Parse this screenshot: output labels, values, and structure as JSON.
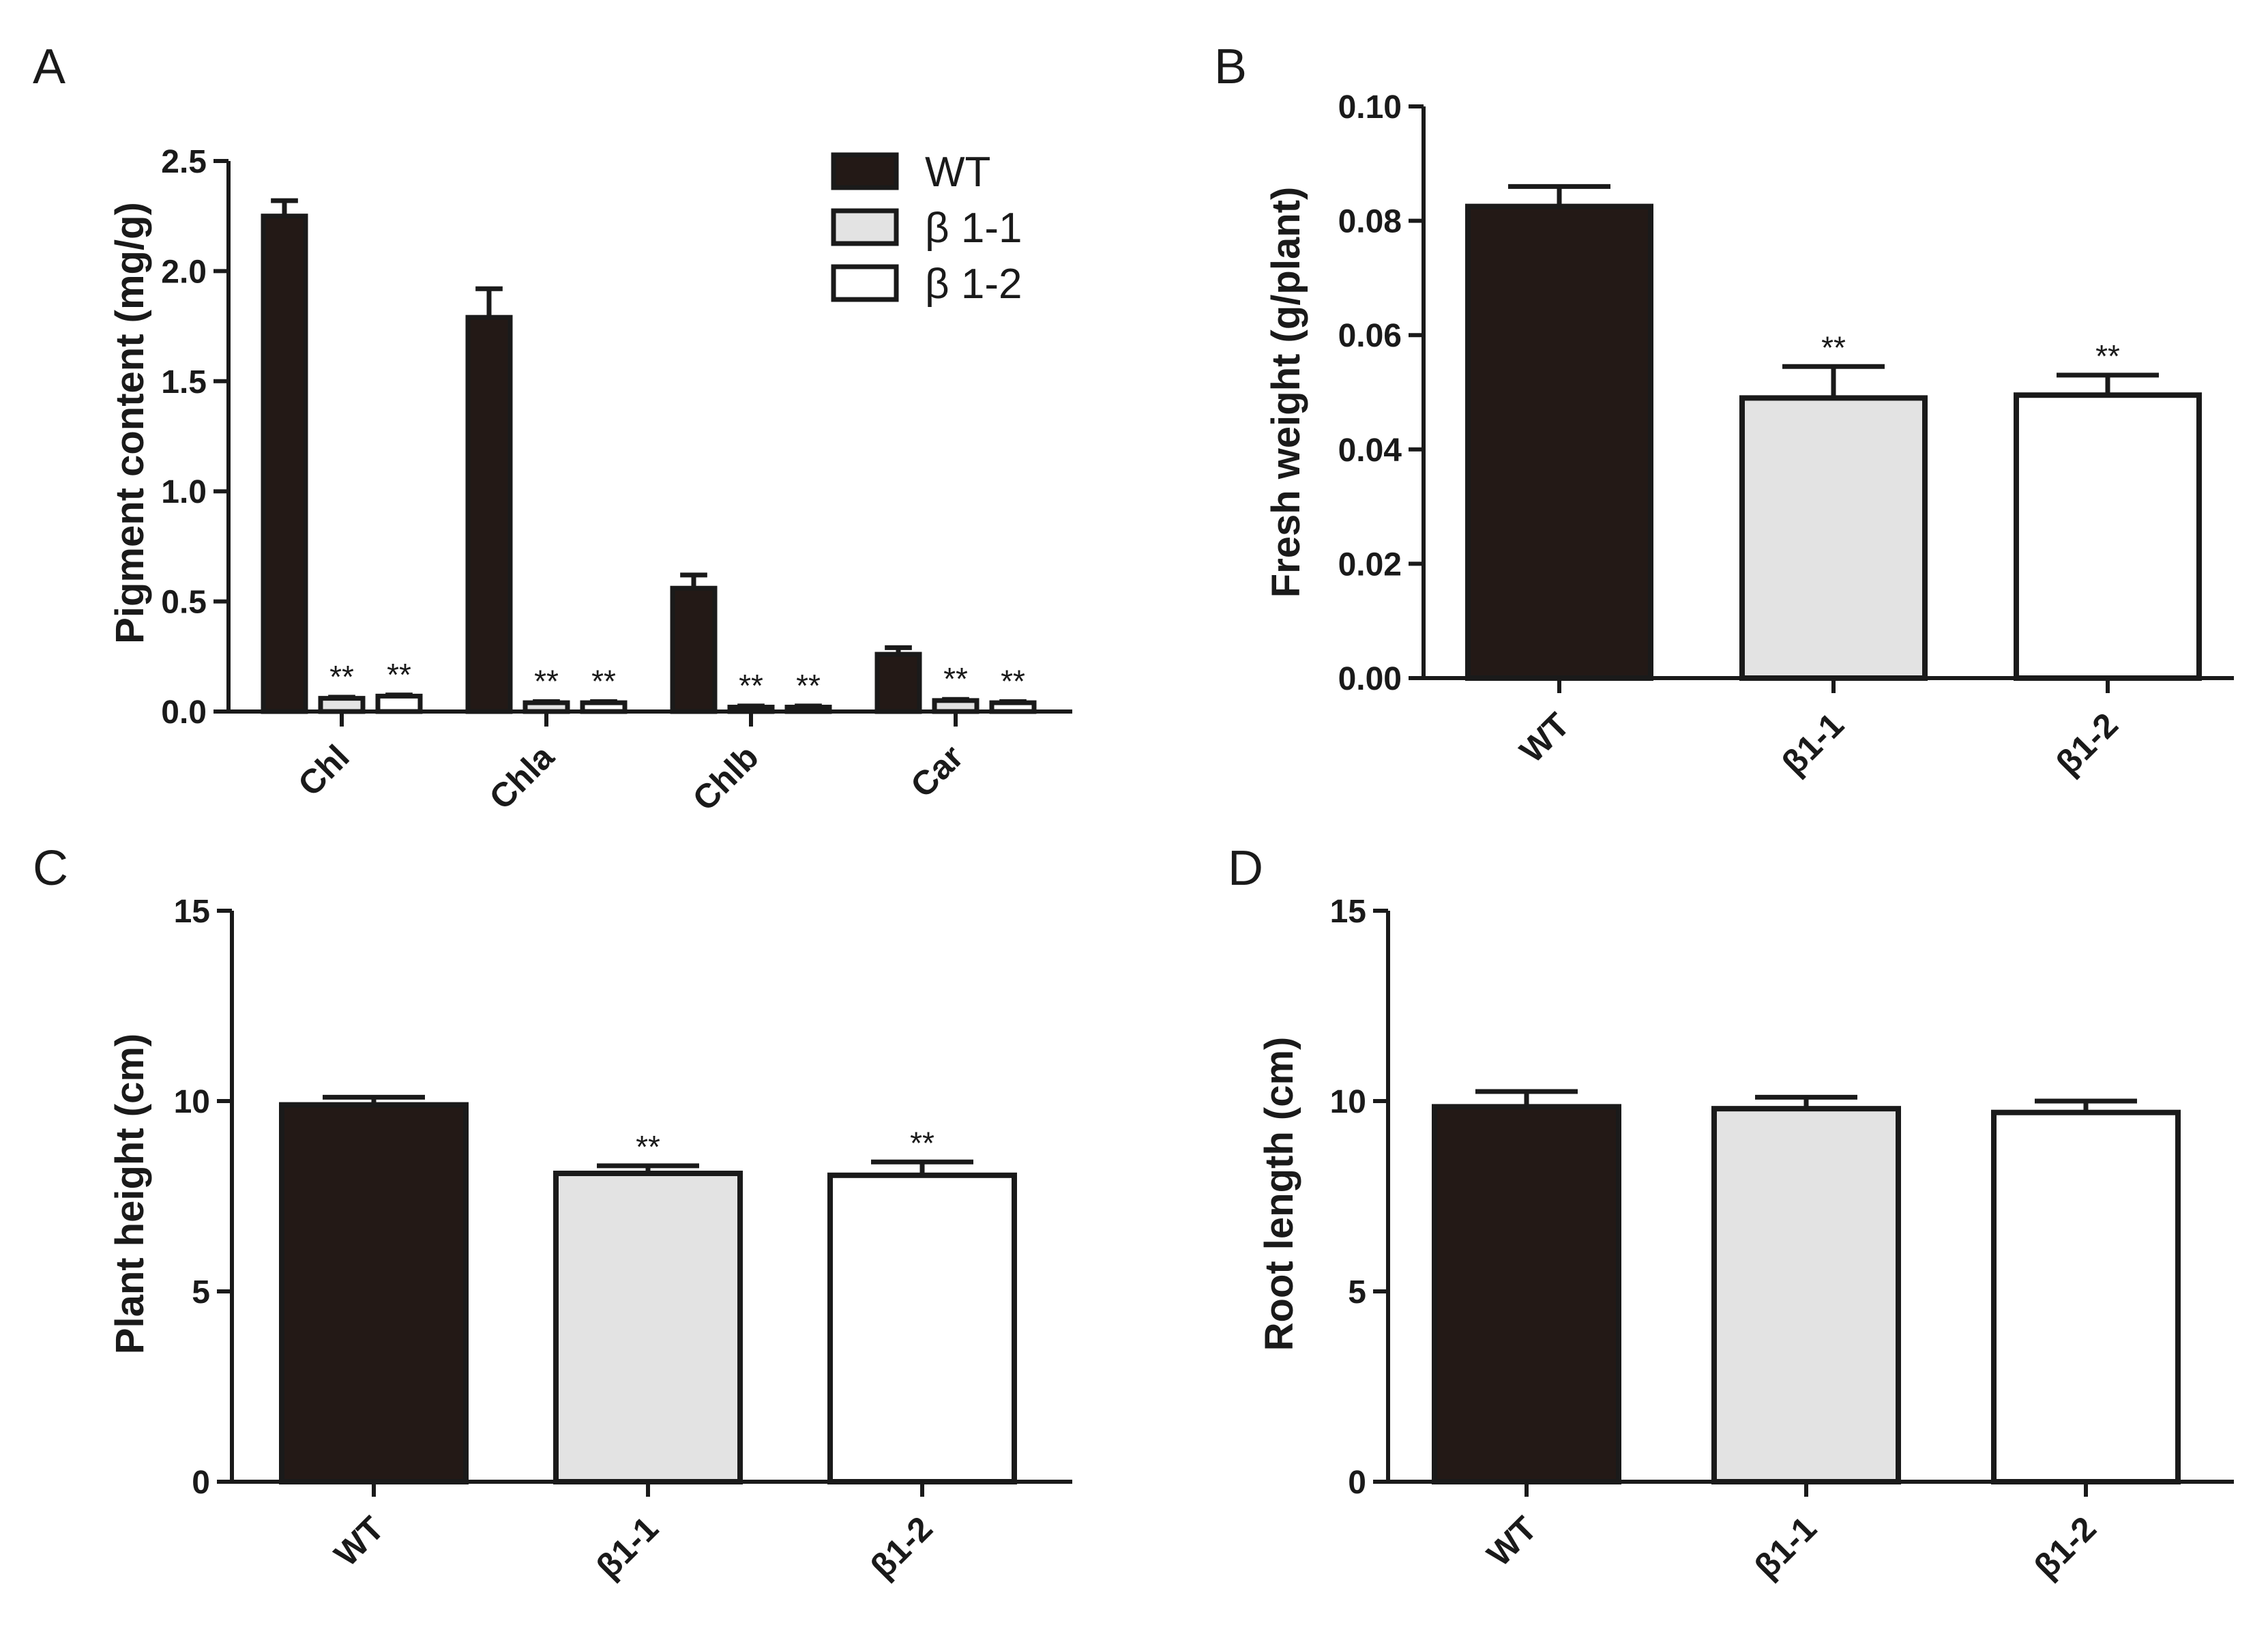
{
  "colors": {
    "WT": "#231916",
    "β 1-1": "#e3e3e3",
    "β 1-2": "#ffffff",
    "outline": "#1a1a1a"
  },
  "legend": {
    "placement": "top-right",
    "entries": [
      "WT",
      "β 1-1",
      "β 1-2"
    ]
  },
  "chart_data": [
    {
      "id": "A",
      "type": "bar",
      "panel_label": "A",
      "ylabel": "Pigment content (mg/g)",
      "ylim": [
        0,
        2.5
      ],
      "yticks": [
        "0.0",
        "0.5",
        "1.0",
        "1.5",
        "2.0",
        "2.5"
      ],
      "ytick_values": [
        0,
        0.5,
        1.0,
        1.5,
        2.0,
        2.5
      ],
      "categories": [
        "Chl",
        "Chla",
        "Chlb",
        "Car"
      ],
      "series": [
        {
          "name": "WT",
          "values": [
            2.25,
            1.79,
            0.56,
            0.26
          ],
          "errors": [
            0.07,
            0.13,
            0.06,
            0.03
          ],
          "sig": [
            "",
            "",
            "",
            ""
          ]
        },
        {
          "name": "β 1-1",
          "values": [
            0.06,
            0.04,
            0.02,
            0.05
          ],
          "errors": [
            0.005,
            0.005,
            0.005,
            0.005
          ],
          "sig": [
            "**",
            "**",
            "**",
            "**"
          ]
        },
        {
          "name": "β 1-2",
          "values": [
            0.07,
            0.04,
            0.02,
            0.04
          ],
          "errors": [
            0.005,
            0.005,
            0.005,
            0.005
          ],
          "sig": [
            "**",
            "**",
            "**",
            "**"
          ]
        }
      ]
    },
    {
      "id": "B",
      "type": "bar",
      "panel_label": "B",
      "ylabel": "Fresh weight (g/plant)",
      "ylim": [
        0,
        0.1
      ],
      "yticks": [
        "0.00",
        "0.02",
        "0.04",
        "0.06",
        "0.08",
        "0.10"
      ],
      "ytick_values": [
        0,
        0.02,
        0.04,
        0.06,
        0.08,
        0.1
      ],
      "categories": [
        "WT",
        "β1-1",
        "β1-2"
      ],
      "values": [
        0.0825,
        0.049,
        0.0495
      ],
      "errors": [
        0.0035,
        0.0055,
        0.0035
      ],
      "sig": [
        "",
        "**",
        "**"
      ]
    },
    {
      "id": "C",
      "type": "bar",
      "panel_label": "C",
      "ylabel": "Plant height (cm)",
      "ylim": [
        0,
        15
      ],
      "yticks": [
        "0",
        "5",
        "10",
        "15"
      ],
      "ytick_values": [
        0,
        5,
        10,
        15
      ],
      "categories": [
        "WT",
        "β1-1",
        "β1-2"
      ],
      "values": [
        9.9,
        8.1,
        8.05
      ],
      "errors": [
        0.2,
        0.2,
        0.35
      ],
      "sig": [
        "",
        "**",
        "**"
      ]
    },
    {
      "id": "D",
      "type": "bar",
      "panel_label": "D",
      "ylabel": "Root length (cm)",
      "ylim": [
        0,
        15
      ],
      "yticks": [
        "0",
        "5",
        "10",
        "15"
      ],
      "ytick_values": [
        0,
        5,
        10,
        15
      ],
      "categories": [
        "WT",
        "β1-1",
        "β1-2"
      ],
      "values": [
        9.85,
        9.8,
        9.7
      ],
      "errors": [
        0.4,
        0.3,
        0.3
      ],
      "sig": [
        "",
        "",
        ""
      ]
    }
  ]
}
